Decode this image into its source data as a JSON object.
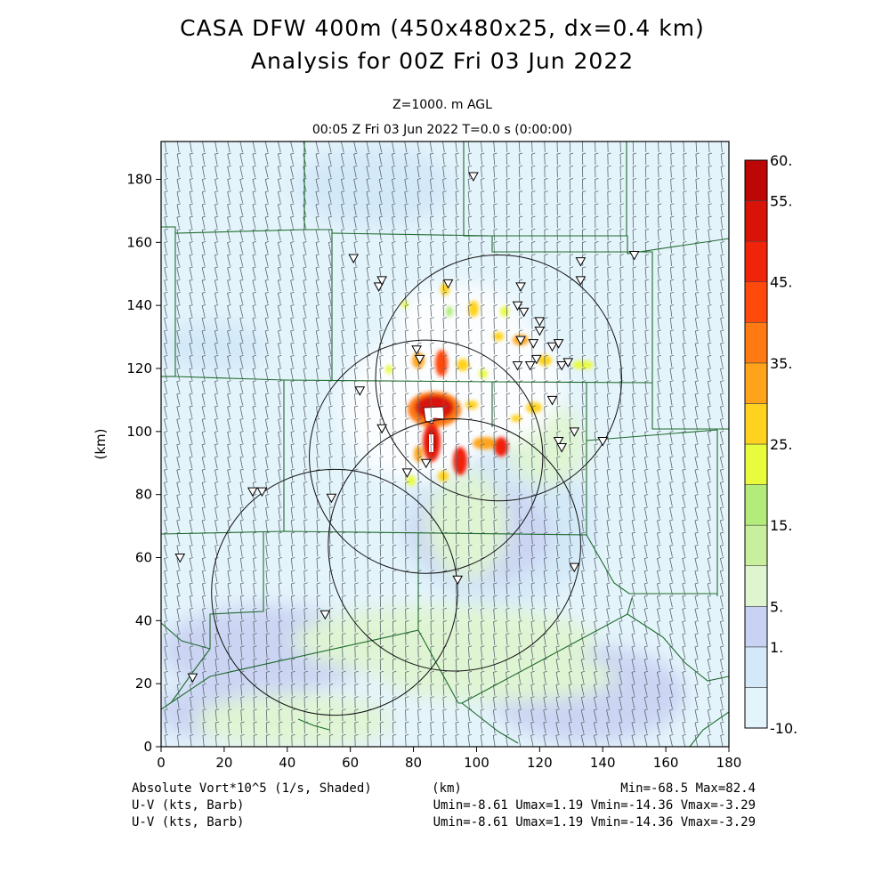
{
  "title": "CASA DFW 400m (450x480x25, dx=0.4 km)",
  "subtitle": "Analysis for 00Z Fri 03 Jun 2022",
  "level_label": "Z=1000. m AGL",
  "time_label": "00:05 Z Fri 03 Jun 2022    T=0.0 s (0:00:00)",
  "footer": {
    "field_label": "Absolute Vort*10^5 (1/s, Shaded)",
    "x_unit": "(km)",
    "minmax": "Min=-68.5 Max=82.4",
    "barb_label_1": "U-V (kts, Barb)",
    "barb_stats_1": "Umin=-8.61 Umax=1.19 Vmin=-14.36 Vmax=-3.29",
    "barb_label_2": "U-V (kts, Barb)",
    "barb_stats_2": "Umin=-8.61 Umax=1.19 Vmin=-14.36 Vmax=-3.29"
  },
  "chart_data": {
    "type": "heatmap",
    "xlabel": "(km)",
    "ylabel": "(km)",
    "xlim": [
      0,
      180
    ],
    "ylim": [
      0,
      192
    ],
    "xticks": [
      0,
      20,
      40,
      60,
      80,
      100,
      120,
      140,
      160,
      180
    ],
    "yticks": [
      0,
      20,
      40,
      60,
      80,
      100,
      120,
      140,
      160,
      180
    ],
    "field": "Absolute Vort*10^5 (1/s, Shaded)",
    "vort_min": -68.5,
    "vort_max": 82.4,
    "colorbar": {
      "levels": [
        -10,
        -5,
        1,
        5,
        10,
        15,
        20,
        25,
        30,
        35,
        40,
        45,
        50,
        55,
        60
      ],
      "tick_labels": [
        "60.",
        "55.",
        "45.",
        "35.",
        "25.",
        "15.",
        "5.",
        "1.",
        "-10."
      ],
      "tick_values": [
        60,
        55,
        45,
        35,
        25,
        15,
        5,
        1,
        -10
      ],
      "colors": [
        "#e4f4fb",
        "#d3e8f8",
        "#c9d2f3",
        "#dff5cf",
        "#c8ef9e",
        "#b4ec7c",
        "#e8fb3c",
        "#ffd21f",
        "#ffa41a",
        "#ff7a12",
        "#ff4a0c",
        "#f0240a",
        "#d81408",
        "#bd0606"
      ]
    },
    "radar_rings_km": [
      {
        "center": [
          107,
          117
        ],
        "radius": 39
      },
      {
        "center": [
          84,
          92
        ],
        "radius": 37
      },
      {
        "center": [
          55,
          49
        ],
        "radius": 39
      },
      {
        "center": [
          93,
          64
        ],
        "radius": 40
      }
    ],
    "station_markers_km": [
      [
        99,
        181
      ],
      [
        61,
        155
      ],
      [
        69,
        146
      ],
      [
        70,
        148
      ],
      [
        91,
        147
      ],
      [
        114,
        146
      ],
      [
        133,
        154
      ],
      [
        133,
        148
      ],
      [
        113,
        140
      ],
      [
        115,
        138
      ],
      [
        120,
        135
      ],
      [
        120,
        132
      ],
      [
        118,
        128
      ],
      [
        124,
        127
      ],
      [
        126,
        128
      ],
      [
        114,
        129
      ],
      [
        81,
        126
      ],
      [
        82,
        123
      ],
      [
        113,
        121
      ],
      [
        117,
        121
      ],
      [
        119,
        123
      ],
      [
        127,
        121
      ],
      [
        129,
        122
      ],
      [
        63,
        113
      ],
      [
        124,
        110
      ],
      [
        70,
        101
      ],
      [
        126,
        97
      ],
      [
        127,
        95
      ],
      [
        131,
        100
      ],
      [
        140,
        97
      ],
      [
        78,
        87
      ],
      [
        84,
        90
      ],
      [
        29,
        81
      ],
      [
        32,
        81
      ],
      [
        54,
        79
      ],
      [
        150,
        156
      ],
      [
        6,
        60
      ],
      [
        131,
        57
      ],
      [
        94,
        53
      ],
      [
        52,
        42
      ],
      [
        10,
        22
      ]
    ],
    "barb_stats": {
      "umin": -8.61,
      "umax": 1.19,
      "vmin": -14.36,
      "vmax": -3.29,
      "units": "kts"
    }
  }
}
